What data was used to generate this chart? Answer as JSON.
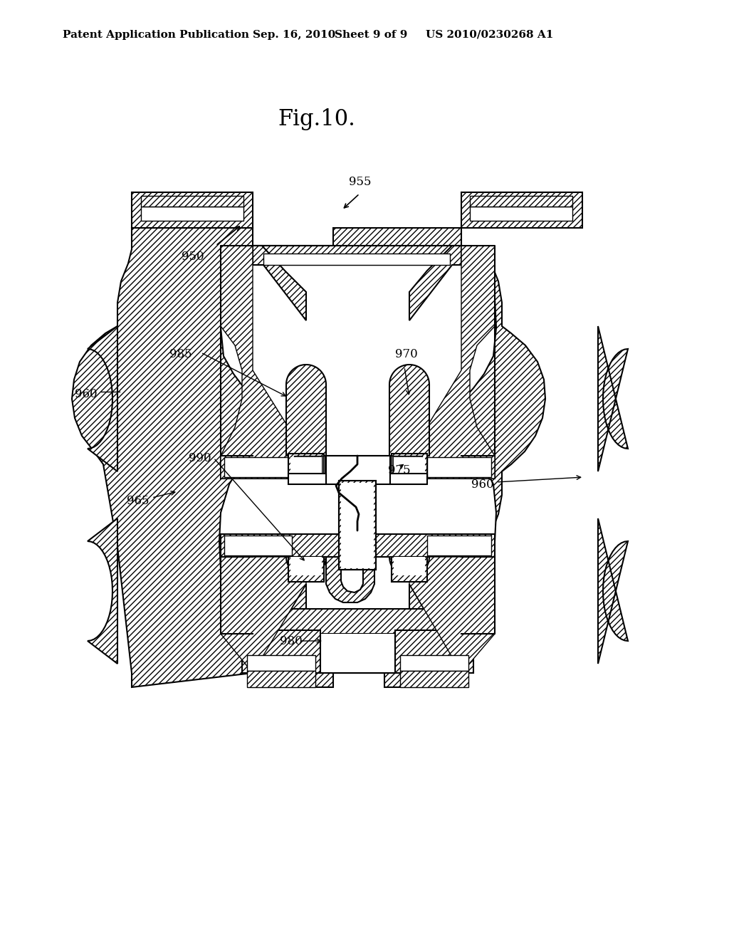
{
  "background_color": "#ffffff",
  "title_header": "Patent Application Publication",
  "title_date": "Sep. 16, 2010",
  "title_sheet": "Sheet 9 of 9",
  "title_patent": "US 2010/0230268 A1",
  "fig_label": "Fig.10.",
  "header_fontsize": 11,
  "fig_fontsize": 22,
  "label_fontsize": 12,
  "line_color": "#000000"
}
